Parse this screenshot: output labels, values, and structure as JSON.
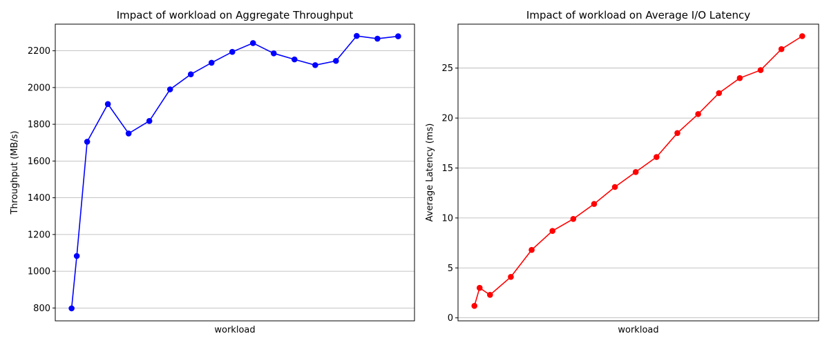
{
  "chart_data": [
    {
      "type": "line",
      "title": "Impact of workload on Aggregate Throughput",
      "xlabel": "workload",
      "ylabel": "Throughput (MB/s)",
      "ylim": [
        730,
        2345
      ],
      "yticks": [
        800,
        1000,
        1200,
        1400,
        1600,
        1800,
        2000,
        2200
      ],
      "grid": "y",
      "series": [
        {
          "color": "#0000ff",
          "x": [
            1,
            2,
            4,
            8,
            12,
            16,
            20,
            24,
            28,
            32,
            36,
            40,
            44,
            48,
            52,
            56,
            60,
            64
          ],
          "values": [
            798,
            1083,
            1705,
            1910,
            1750,
            1818,
            1990,
            2072,
            2135,
            2194,
            2242,
            2186,
            2153,
            2122,
            2145,
            2281,
            2266,
            2279
          ]
        }
      ]
    },
    {
      "type": "line",
      "title": "Impact of workload on Average I/O Latency",
      "xlabel": "workload",
      "ylabel": "Average Latency (ms)",
      "ylim": [
        -0.3,
        29.4
      ],
      "yticks": [
        0,
        5,
        10,
        15,
        20,
        25
      ],
      "grid": "y",
      "series": [
        {
          "color": "#ff0000",
          "x": [
            1,
            2,
            4,
            8,
            12,
            16,
            20,
            24,
            28,
            32,
            36,
            40,
            44,
            48,
            52,
            56,
            60,
            64
          ],
          "values": [
            1.2,
            3.0,
            2.3,
            4.1,
            6.8,
            8.7,
            9.9,
            11.4,
            13.1,
            14.6,
            16.1,
            18.5,
            20.4,
            22.5,
            24.0,
            24.8,
            26.9,
            28.2
          ]
        }
      ]
    }
  ]
}
